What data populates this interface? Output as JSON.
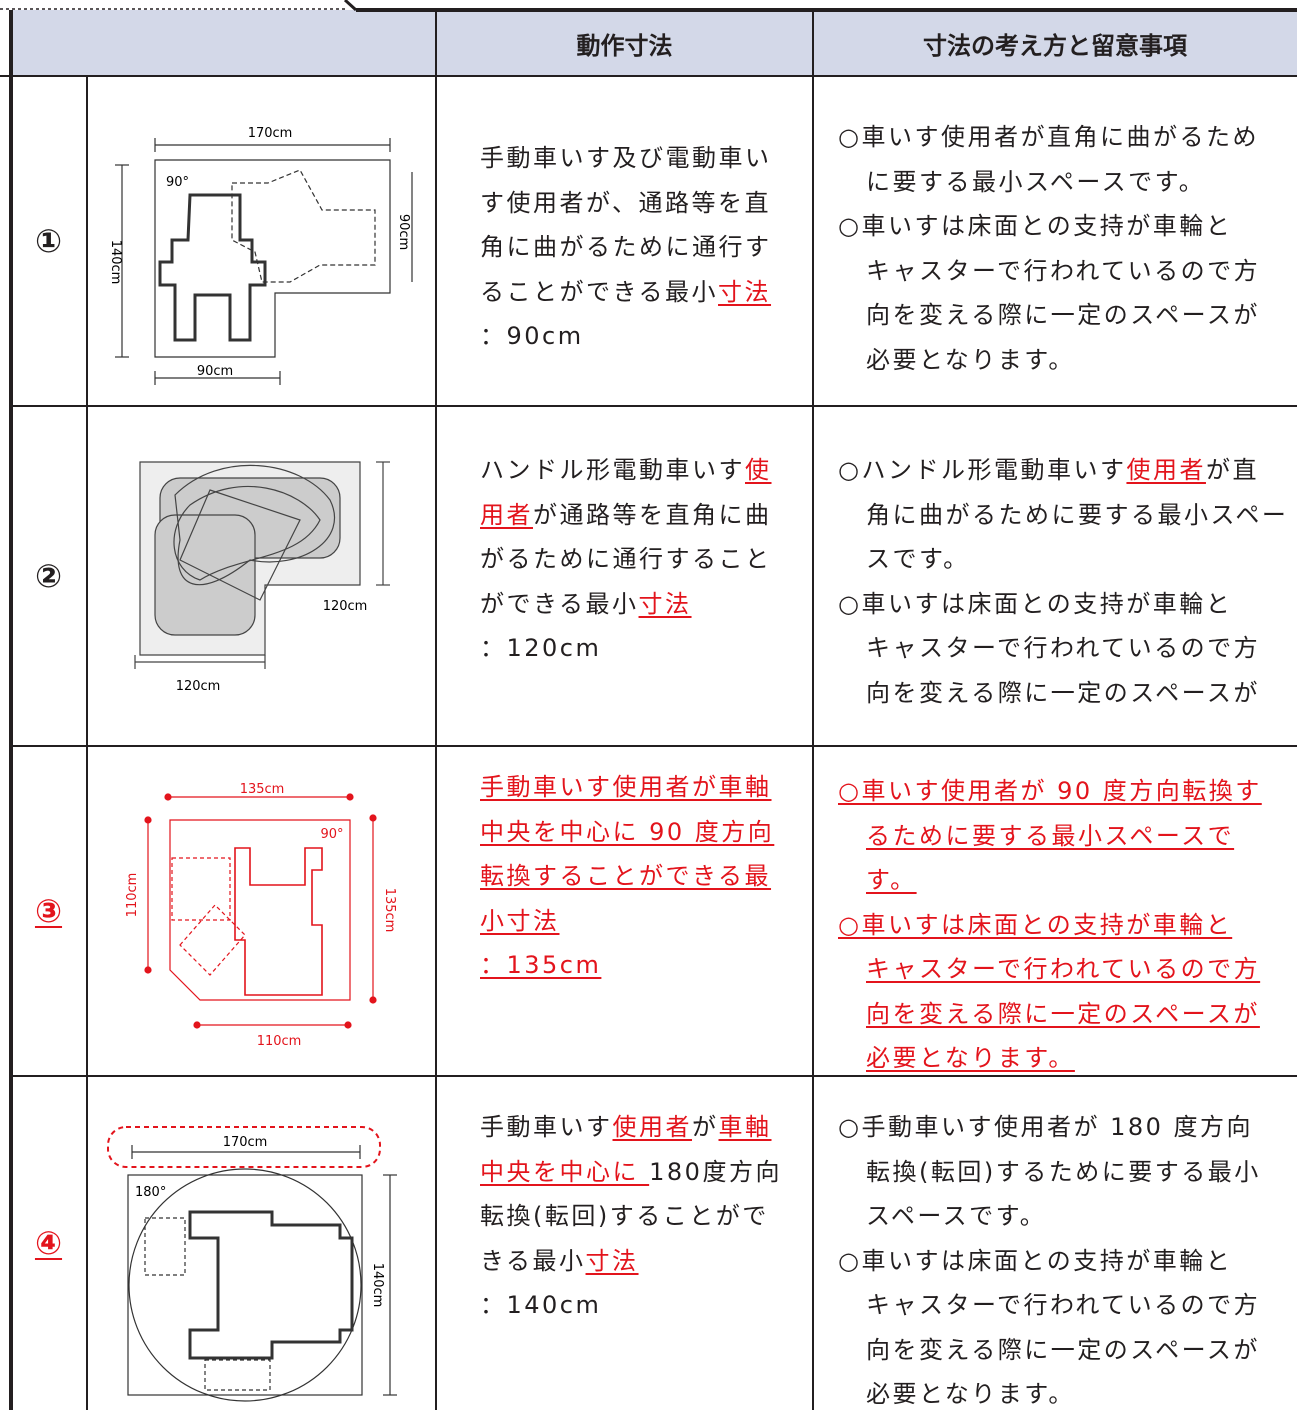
{
  "header": {
    "cells": [
      "動作寸法",
      "寸法の考え方と留意事項"
    ]
  },
  "rows": [
    {
      "number": "①",
      "number_red": false,
      "diagram_labels": [
        "170cm",
        "140cm",
        "90cm",
        "90cm",
        "90°"
      ],
      "motion": [
        [
          "手動車いす及び電動車い"
        ],
        [
          "す使用者が、通路等を直"
        ],
        [
          "角に曲がるために通行す"
        ],
        [
          "ることができる最小",
          {
            "text": "寸法",
            "red": true
          }
        ],
        [
          "：90cm"
        ]
      ],
      "notes": [
        [
          [
            "○車いす使用者が直角に曲がるため"
          ],
          [
            "に要する最小スペースです。"
          ]
        ],
        [
          [
            "○車いすは床面との支持が車輪と"
          ],
          [
            "キャスターで行われているので方"
          ],
          [
            "向を変える際に一定のスペースが"
          ],
          [
            "必要となります。"
          ]
        ]
      ]
    },
    {
      "number": "②",
      "number_red": false,
      "diagram_labels": [
        "120cm",
        "120cm"
      ],
      "motion": [
        [
          "ハンドル形電動車いす",
          {
            "text": "使",
            "red": true
          }
        ],
        [
          {
            "text": "用者",
            "red": true
          },
          "が通路等を直角に曲"
        ],
        [
          "がるために通行すること"
        ],
        [
          "ができる最小",
          {
            "text": "寸法",
            "red": true
          }
        ],
        [
          "：120cm"
        ]
      ],
      "notes": [
        [
          [
            "○ハンドル形電動車いす",
            {
              "text": "使用者",
              "red": true
            },
            "が直"
          ],
          [
            "角に曲がるために要する最小スペー"
          ],
          [
            "スです。"
          ]
        ],
        [
          [
            "○車いすは床面との支持が車輪と"
          ],
          [
            "キャスターで行われているので方"
          ],
          [
            "向を変える際に一定のスペースが"
          ]
        ]
      ]
    },
    {
      "number": "③",
      "number_red": true,
      "diagram_labels": [
        "135cm",
        "110cm",
        "90°",
        "135cm",
        "110cm"
      ],
      "motion": [
        [
          {
            "text": "手動車いす使用者が車軸",
            "red": true
          }
        ],
        [
          {
            "text": "中央を中心に 90 度方向",
            "red": true
          }
        ],
        [
          {
            "text": "転換することができる最",
            "red": true
          }
        ],
        [
          {
            "text": "小寸法",
            "red": true
          }
        ],
        [
          {
            "text": "：135cm",
            "red": true
          }
        ]
      ],
      "notes": [
        [
          [
            {
              "text": "○車いす使用者が 90 度方向転換す",
              "red": true
            }
          ],
          [
            {
              "text": "るために要する最小スペースで",
              "red": true
            }
          ],
          [
            {
              "text": "す。",
              "red": true
            }
          ]
        ],
        [
          [
            {
              "text": "○車いすは床面との支持が車輪と",
              "red": true
            }
          ],
          [
            {
              "text": "キャスターで行われているので方",
              "red": true
            }
          ],
          [
            {
              "text": "向を変える際に一定のスペースが",
              "red": true
            }
          ],
          [
            {
              "text": "必要となります。",
              "red": true
            }
          ]
        ]
      ]
    },
    {
      "number": "④",
      "number_red": true,
      "diagram_labels": [
        "170cm",
        "180°",
        "140cm"
      ],
      "motion": [
        [
          "手動車いす",
          {
            "text": "使用者",
            "red": true
          },
          "が",
          {
            "text": "車軸",
            "red": true
          }
        ],
        [
          {
            "text": "中央を中心に ",
            "red": true
          },
          "180度方向"
        ],
        [
          "転換(転回)することがで"
        ],
        [
          "きる最小",
          {
            "text": "寸法",
            "red": true
          }
        ],
        [
          "：140cm"
        ]
      ],
      "notes": [
        [
          [
            "○手動車いす使用者が 180 度方向"
          ],
          [
            "転換(転回)するために要する最小"
          ],
          [
            "スペースです。"
          ]
        ],
        [
          [
            "○車いすは床面との支持が車輪と"
          ],
          [
            "キャスターで行われているので方"
          ],
          [
            "向を変える際に一定のスペースが"
          ],
          [
            "必要となります。"
          ]
        ]
      ]
    }
  ]
}
